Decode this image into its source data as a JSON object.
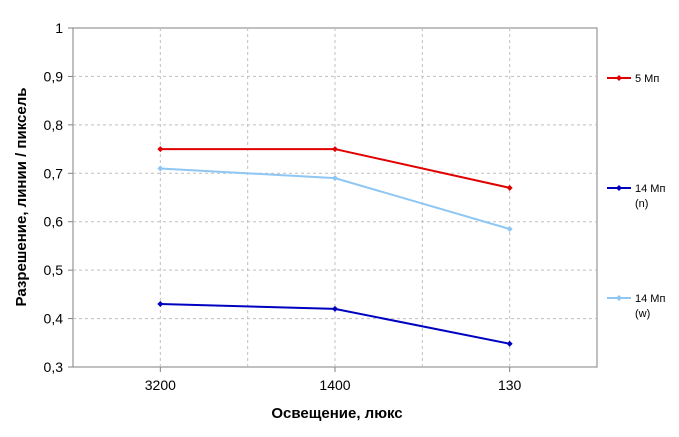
{
  "chart_data": {
    "type": "line",
    "title": "",
    "xlabel": "Освещение, люкс",
    "ylabel": "Разрешение, линии / пиксель",
    "categories": [
      "3200",
      "1400",
      "130"
    ],
    "ylim": [
      0.3,
      1.0
    ],
    "yticks": [
      "0,3",
      "0,4",
      "0,5",
      "0,6",
      "0,7",
      "0,8",
      "0,9",
      "1"
    ],
    "grid": true,
    "legend_position": "right",
    "series": [
      {
        "name": "5 Мп",
        "label_lines": [
          "5 Мп"
        ],
        "color": "#e00000",
        "values": [
          0.75,
          0.75,
          0.67
        ]
      },
      {
        "name": "14 Мп (n)",
        "label_lines": [
          "14 Мп",
          "(n)"
        ],
        "color": "#0000c0",
        "values": [
          0.43,
          0.42,
          0.348
        ]
      },
      {
        "name": "14 Мп (w)",
        "label_lines": [
          "14 Мп",
          "(w)"
        ],
        "color": "#8ec6f4",
        "values": [
          0.71,
          0.69,
          0.585
        ]
      }
    ]
  }
}
